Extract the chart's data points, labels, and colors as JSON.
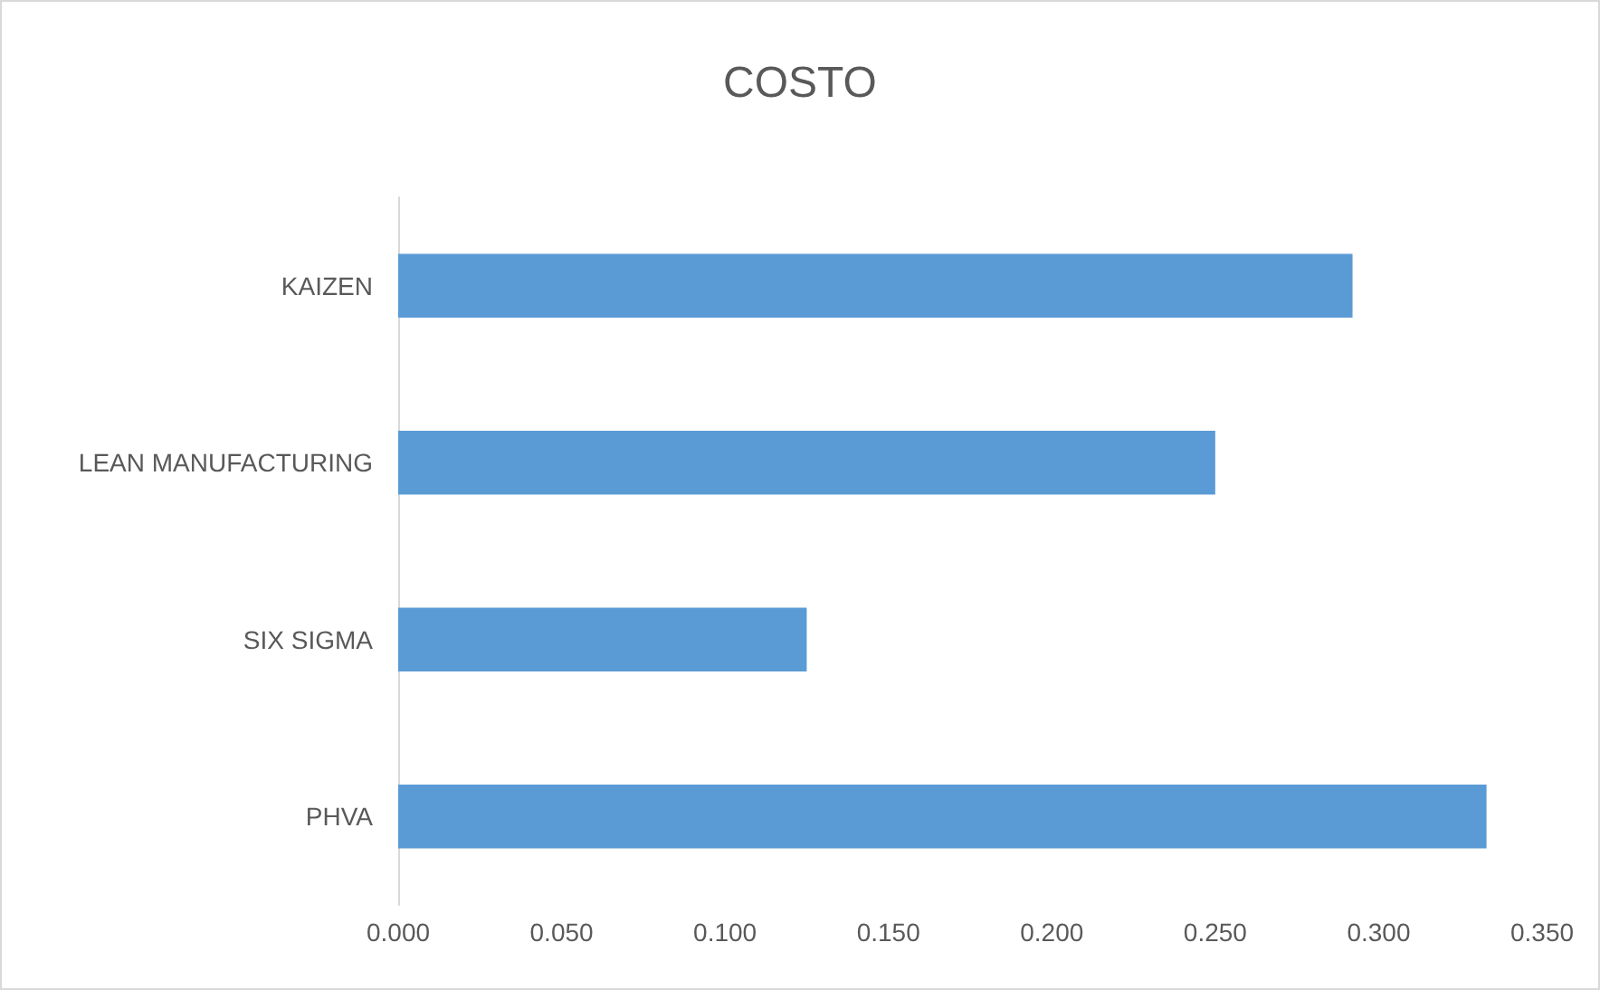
{
  "chart_data": {
    "type": "bar",
    "orientation": "horizontal",
    "title": "COSTO",
    "categories": [
      "KAIZEN",
      "LEAN MANUFACTURING",
      "SIX SIGMA",
      "PHVA"
    ],
    "values": [
      0.292,
      0.25,
      0.125,
      0.333
    ],
    "color": "#5b9bd5",
    "xlim": [
      0,
      0.35
    ],
    "xticks": [
      {
        "value": 0,
        "label": "0.000"
      },
      {
        "value": 0.05,
        "label": "0.050"
      },
      {
        "value": 0.1,
        "label": "0.100"
      },
      {
        "value": 0.15,
        "label": "0.150"
      },
      {
        "value": 0.2,
        "label": "0.200"
      },
      {
        "value": 0.25,
        "label": "0.250"
      },
      {
        "value": 0.3,
        "label": "0.300"
      },
      {
        "value": 0.35,
        "label": "0.350"
      }
    ],
    "grid": false
  }
}
